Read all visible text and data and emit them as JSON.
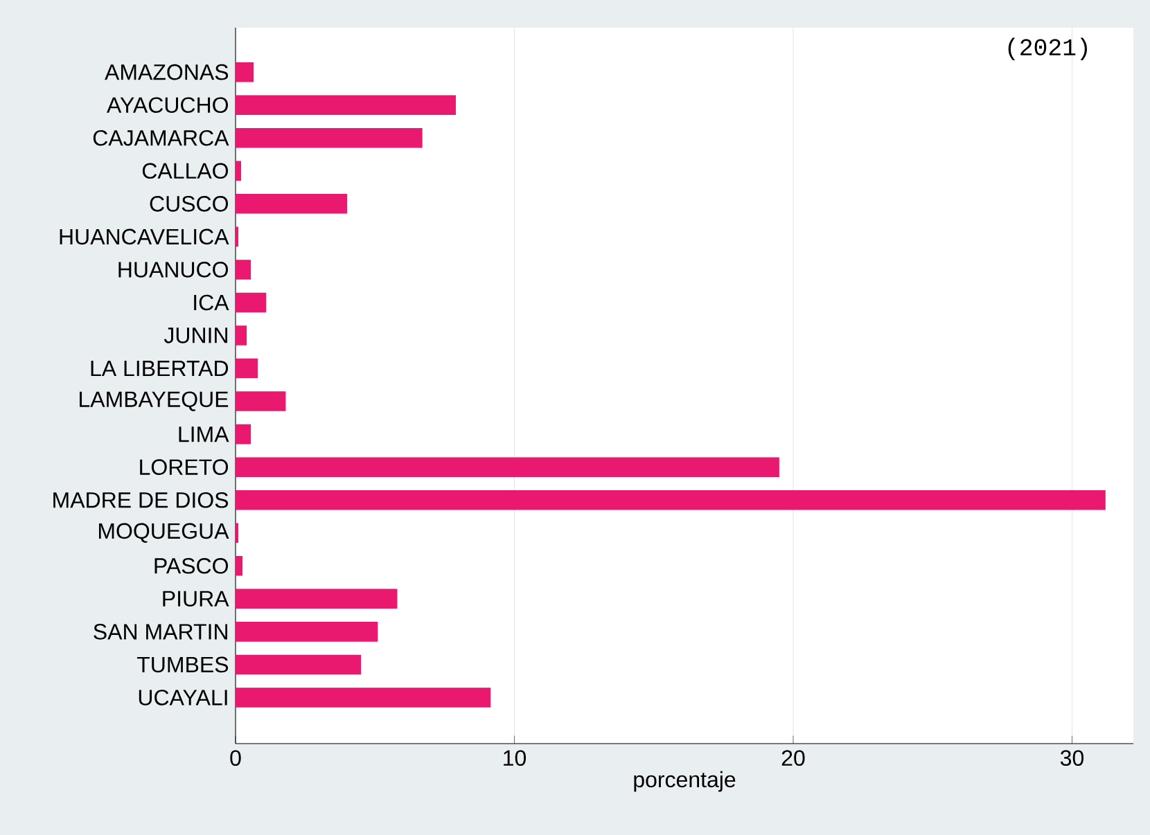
{
  "chart_data": {
    "type": "bar",
    "orientation": "horizontal",
    "categories": [
      "AMAZONAS",
      "AYACUCHO",
      "CAJAMARCA",
      "CALLAO",
      "CUSCO",
      "HUANCAVELICA",
      "HUANUCO",
      "ICA",
      "JUNIN",
      "LA LIBERTAD",
      "LAMBAYEQUE",
      "LIMA",
      "LORETO",
      "MADRE DE DIOS",
      "MOQUEGUA",
      "PASCO",
      "PIURA",
      "SAN MARTIN",
      "TUMBES",
      "UCAYALI"
    ],
    "values": [
      0.65,
      7.9,
      6.7,
      0.2,
      4.0,
      0.1,
      0.55,
      1.1,
      0.4,
      0.8,
      1.8,
      0.55,
      19.5,
      31.2,
      0.1,
      0.25,
      5.8,
      5.1,
      4.5,
      9.15
    ],
    "color": "#e8196e",
    "xlim": [
      0,
      32.2
    ],
    "xticks": [
      0,
      10,
      20,
      30
    ],
    "grid": "x",
    "xlabel": "porcentaje",
    "annotations": [
      "(2021)"
    ]
  }
}
